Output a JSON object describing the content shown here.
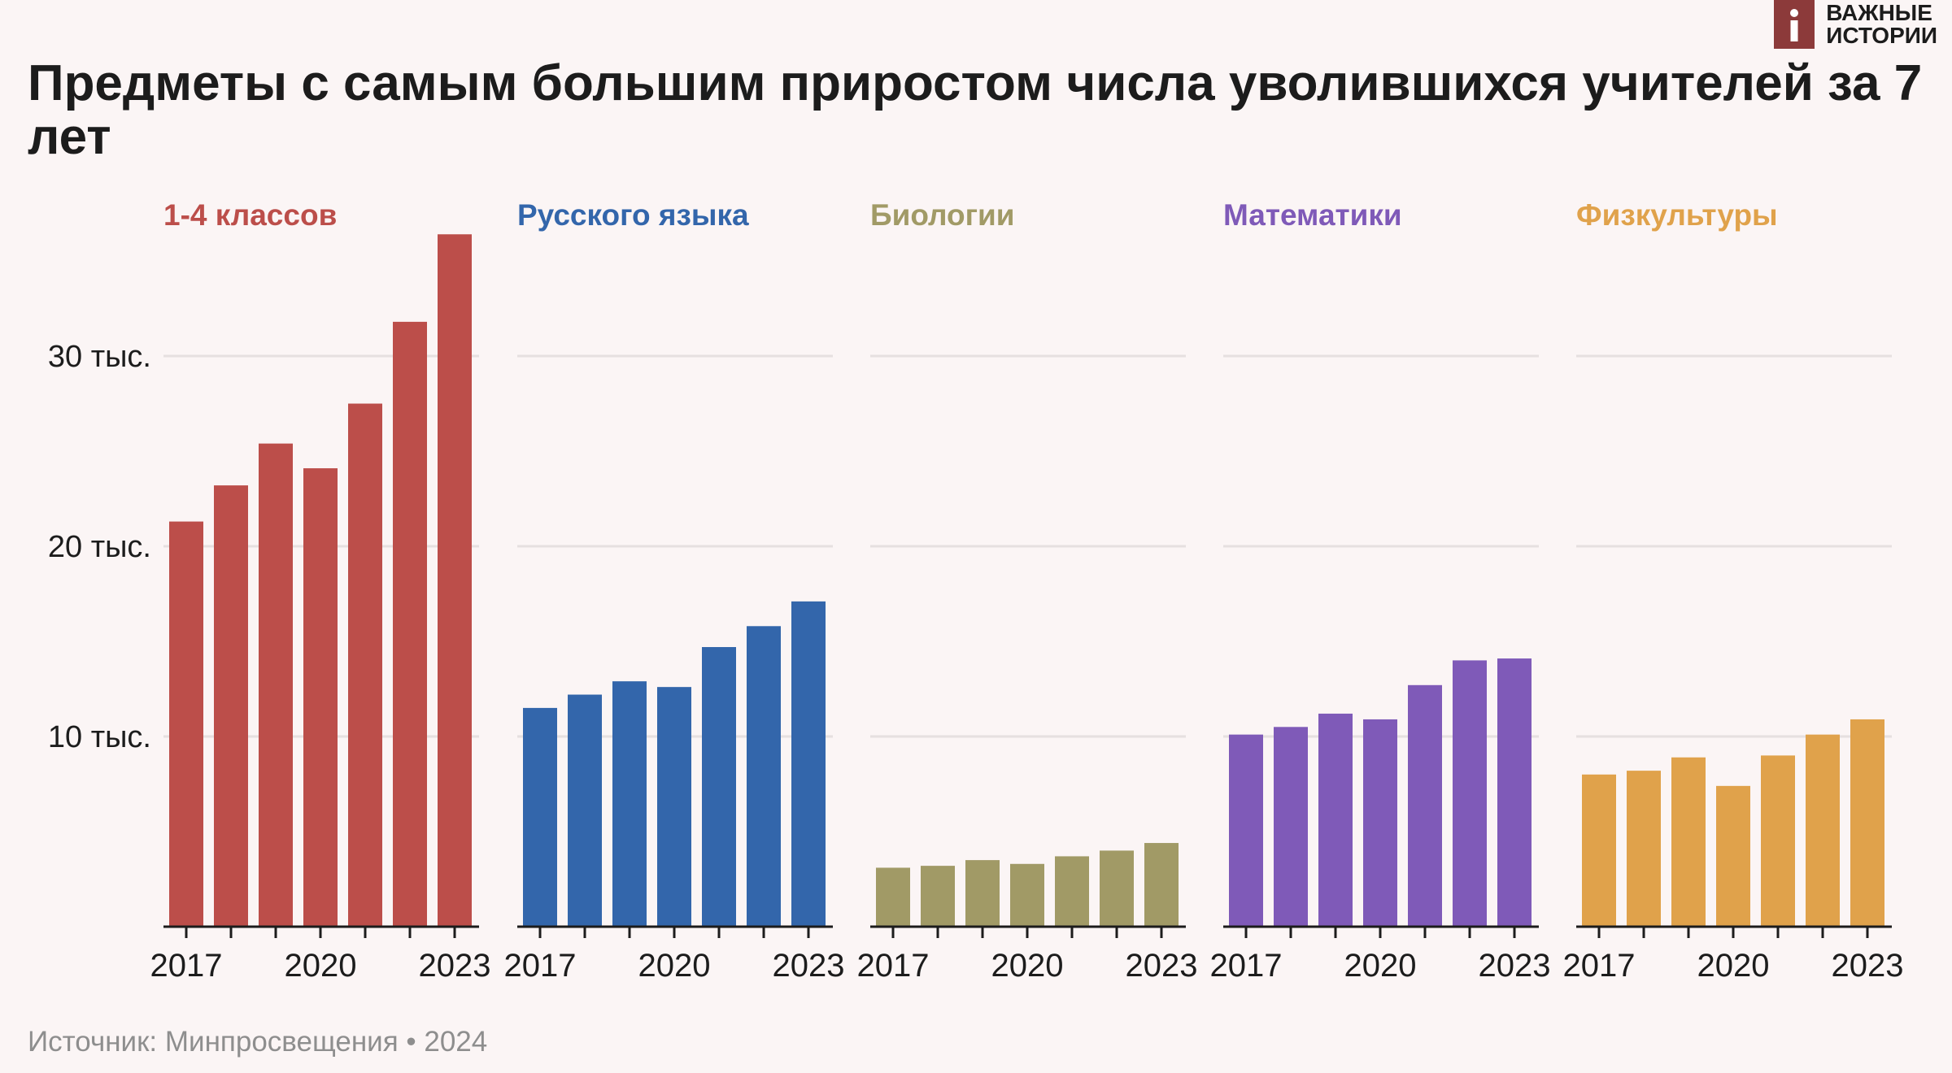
{
  "title": "Предметы с самым большим приростом числа уволившихся учителей за 7 лет",
  "logo": {
    "icon": "info-i-icon",
    "text": "ВАЖНЫЕ\nИСТОРИИ",
    "color": "#8c3a3a"
  },
  "source": "Источник: Минпросвещения • 2024",
  "chart_data": {
    "type": "bar",
    "ylim": [
      0,
      37000
    ],
    "yticks": [
      10000,
      20000,
      30000
    ],
    "ytick_labels": [
      "10 тыс.",
      "20 тыс.",
      "30 тыс."
    ],
    "x": [
      2017,
      2018,
      2019,
      2020,
      2021,
      2022,
      2023
    ],
    "x_tick_labels": [
      "2017",
      "2020",
      "2023"
    ],
    "grid": true,
    "panels": [
      {
        "name": "1-4 классов",
        "color": "#bc4e4a",
        "values": [
          21300,
          23200,
          25400,
          24100,
          27500,
          31800,
          36400
        ]
      },
      {
        "name": "Русского языка",
        "color": "#3366ab",
        "values": [
          11500,
          12200,
          12900,
          12600,
          14700,
          15800,
          17100
        ]
      },
      {
        "name": "Биологии",
        "color": "#a19a66",
        "values": [
          3100,
          3200,
          3500,
          3300,
          3700,
          4000,
          4400
        ]
      },
      {
        "name": "Математики",
        "color": "#7f5ab8",
        "values": [
          10100,
          10500,
          11200,
          10900,
          12700,
          14000,
          14100
        ]
      },
      {
        "name": "Физкультуры",
        "color": "#e0a24b",
        "values": [
          8000,
          8200,
          8900,
          7400,
          9000,
          10100,
          10900
        ]
      }
    ]
  }
}
